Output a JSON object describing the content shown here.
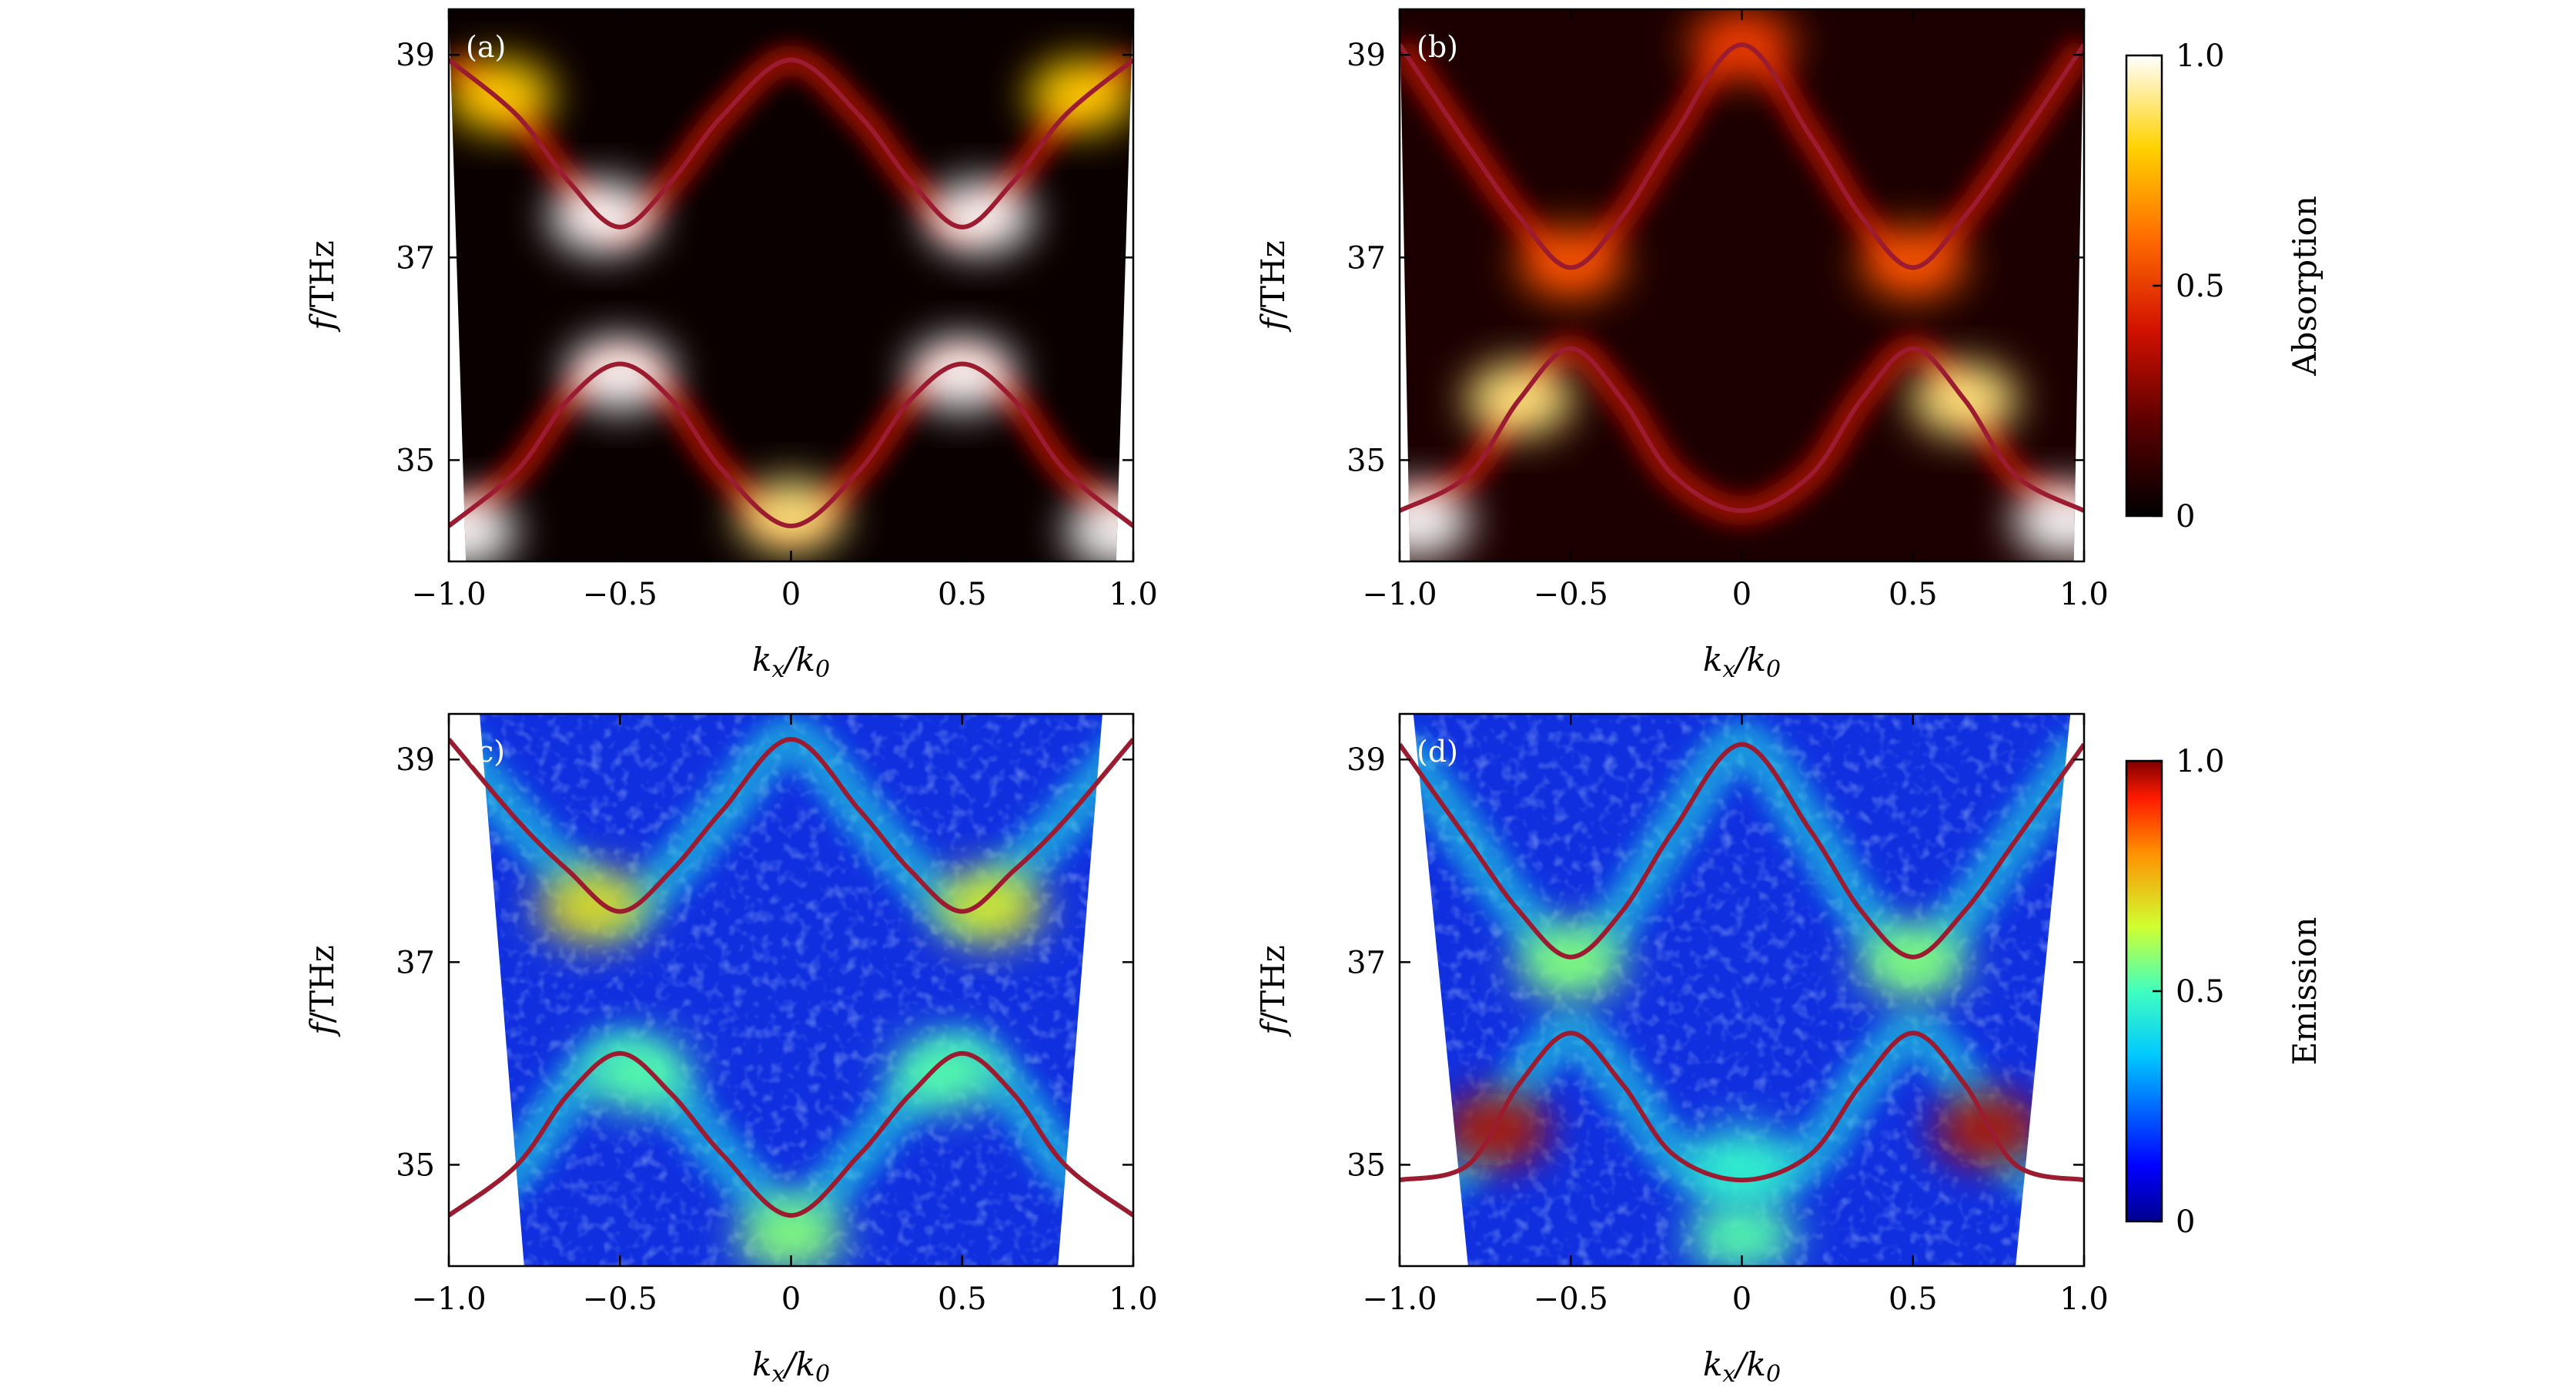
{
  "colors": {
    "band_line": "#9b1b30",
    "absorption_colormap": "hot",
    "emission_colormap": "jet"
  },
  "chart_data": [
    {
      "panel_label": "(a)",
      "type": "heatmap",
      "colormap": "hot",
      "colorbar_ref": "absorption",
      "xlabel": "kx/k0",
      "ylabel": "f/THz",
      "xlim": [
        -1.0,
        1.0
      ],
      "ylim": [
        34.0,
        39.45
      ],
      "xticks": [
        "−1.0",
        "−0.5",
        "0",
        "0.5",
        "1.0"
      ],
      "xtick_values": [
        -1.0,
        -0.5,
        0,
        0.5,
        1.0
      ],
      "yticks": [
        "35",
        "37",
        "39"
      ],
      "ytick_values": [
        35,
        37,
        39
      ],
      "valid_region": {
        "x_at_bottom": [
          -0.95,
          0.95
        ],
        "x_at_top": [
          -1.0,
          1.0
        ]
      },
      "series": [
        {
          "x": [
            -1.0,
            -0.8,
            -0.65,
            -0.5,
            -0.35,
            -0.2,
            0.0,
            0.2,
            0.35,
            0.5,
            0.65,
            0.8,
            1.0
          ],
          "y": [
            38.95,
            38.4,
            37.75,
            37.3,
            37.75,
            38.4,
            38.95,
            38.4,
            37.75,
            37.3,
            37.75,
            38.4,
            38.95
          ]
        },
        {
          "x": [
            -1.0,
            -0.8,
            -0.65,
            -0.5,
            -0.35,
            -0.2,
            0.0,
            0.2,
            0.35,
            0.5,
            0.65,
            0.8,
            1.0
          ],
          "y": [
            34.35,
            34.9,
            35.6,
            35.95,
            35.6,
            34.9,
            34.35,
            34.9,
            35.6,
            35.95,
            35.6,
            34.9,
            34.35
          ]
        }
      ],
      "intensity_features": [
        {
          "x": -0.55,
          "y": 37.4,
          "value": 1.0
        },
        {
          "x": 0.55,
          "y": 37.4,
          "value": 1.0
        },
        {
          "x": -0.85,
          "y": 38.6,
          "value": 0.8
        },
        {
          "x": 0.85,
          "y": 38.6,
          "value": 0.8
        },
        {
          "x": -0.5,
          "y": 35.85,
          "value": 1.0
        },
        {
          "x": 0.5,
          "y": 35.85,
          "value": 1.0
        },
        {
          "x": 0.0,
          "y": 34.45,
          "value": 0.9
        },
        {
          "x": -0.96,
          "y": 34.3,
          "value": 1.0
        },
        {
          "x": 0.96,
          "y": 34.3,
          "value": 1.0
        }
      ]
    },
    {
      "panel_label": "(b)",
      "type": "heatmap",
      "colormap": "hot",
      "colorbar_ref": "absorption",
      "xlabel": "kx/k0",
      "ylabel": "f/THz",
      "xlim": [
        -1.0,
        1.0
      ],
      "ylim": [
        34.0,
        39.45
      ],
      "xticks": [
        "−1.0",
        "−0.5",
        "0",
        "0.5",
        "1.0"
      ],
      "xtick_values": [
        -1.0,
        -0.5,
        0,
        0.5,
        1.0
      ],
      "yticks": [
        "35",
        "37",
        "39"
      ],
      "ytick_values": [
        35,
        37,
        39
      ],
      "valid_region": {
        "x_at_bottom": [
          -0.97,
          0.97
        ],
        "x_at_top": [
          -1.0,
          1.0
        ]
      },
      "series": [
        {
          "x": [
            -1.0,
            -0.8,
            -0.65,
            -0.5,
            -0.35,
            -0.2,
            0.0,
            0.2,
            0.35,
            0.5,
            0.65,
            0.8,
            1.0
          ],
          "y": [
            39.1,
            38.1,
            37.4,
            36.9,
            37.4,
            38.2,
            39.1,
            38.2,
            37.4,
            36.9,
            37.4,
            38.1,
            39.1
          ]
        },
        {
          "x": [
            -1.0,
            -0.8,
            -0.65,
            -0.5,
            -0.35,
            -0.2,
            0.0,
            0.2,
            0.35,
            0.5,
            0.65,
            0.8,
            1.0
          ],
          "y": [
            34.5,
            34.85,
            35.6,
            36.1,
            35.6,
            34.85,
            34.5,
            34.85,
            35.6,
            36.1,
            35.6,
            34.85,
            34.5
          ]
        }
      ],
      "intensity_features": [
        {
          "x": -0.5,
          "y": 36.95,
          "value": 0.55
        },
        {
          "x": 0.5,
          "y": 36.95,
          "value": 0.55
        },
        {
          "x": -0.65,
          "y": 35.6,
          "value": 0.9
        },
        {
          "x": 0.65,
          "y": 35.6,
          "value": 0.9
        },
        {
          "x": -0.95,
          "y": 34.4,
          "value": 1.0
        },
        {
          "x": 0.95,
          "y": 34.4,
          "value": 1.0
        },
        {
          "x": 0.0,
          "y": 39.1,
          "value": 0.5
        }
      ]
    },
    {
      "panel_label": "(c)",
      "type": "heatmap",
      "colormap": "jet",
      "colorbar_ref": "emission",
      "xlabel": "kx/k0",
      "ylabel": "f/THz",
      "xlim": [
        -1.0,
        1.0
      ],
      "ylim": [
        34.0,
        39.45
      ],
      "xticks": [
        "−1.0",
        "−0.5",
        "0",
        "0.5",
        "1.0"
      ],
      "xtick_values": [
        -1.0,
        -0.5,
        0,
        0.5,
        1.0
      ],
      "yticks": [
        "35",
        "37",
        "39"
      ],
      "ytick_values": [
        35,
        37,
        39
      ],
      "valid_region": {
        "x_at_bottom": [
          -0.78,
          0.78
        ],
        "x_at_top": [
          -0.91,
          0.91
        ]
      },
      "series": [
        {
          "x": [
            -1.0,
            -0.8,
            -0.65,
            -0.5,
            -0.35,
            -0.2,
            0.0,
            0.2,
            0.35,
            0.5,
            0.65,
            0.8,
            1.0
          ],
          "y": [
            39.2,
            38.4,
            37.9,
            37.5,
            37.9,
            38.5,
            39.2,
            38.5,
            37.9,
            37.5,
            37.9,
            38.4,
            39.2
          ]
        },
        {
          "x": [
            -1.0,
            -0.8,
            -0.65,
            -0.5,
            -0.35,
            -0.2,
            0.0,
            0.2,
            0.35,
            0.5,
            0.65,
            0.8,
            1.0
          ],
          "y": [
            34.5,
            35.0,
            35.7,
            36.1,
            35.7,
            35.1,
            34.5,
            35.1,
            35.7,
            36.1,
            35.7,
            35.0,
            34.5
          ]
        }
      ],
      "intensity_features": [
        {
          "x": -0.58,
          "y": 37.55,
          "value": 0.62
        },
        {
          "x": 0.58,
          "y": 37.55,
          "value": 0.6
        },
        {
          "x": -0.45,
          "y": 35.9,
          "value": 0.45
        },
        {
          "x": 0.45,
          "y": 35.9,
          "value": 0.45
        },
        {
          "x": 0.0,
          "y": 34.3,
          "value": 0.5
        }
      ]
    },
    {
      "panel_label": "(d)",
      "type": "heatmap",
      "colormap": "jet",
      "colorbar_ref": "emission",
      "xlabel": "kx/k0",
      "ylabel": "f/THz",
      "xlim": [
        -1.0,
        1.0
      ],
      "ylim": [
        34.0,
        39.45
      ],
      "xticks": [
        "−1.0",
        "−0.5",
        "0",
        "0.5",
        "1.0"
      ],
      "xtick_values": [
        -1.0,
        -0.5,
        0,
        0.5,
        1.0
      ],
      "yticks": [
        "35",
        "37",
        "39"
      ],
      "ytick_values": [
        35,
        37,
        39
      ],
      "valid_region": {
        "x_at_bottom": [
          -0.8,
          0.8
        ],
        "x_at_top": [
          -0.96,
          0.96
        ]
      },
      "series": [
        {
          "x": [
            -1.0,
            -0.8,
            -0.65,
            -0.5,
            -0.35,
            -0.2,
            0.0,
            0.2,
            0.35,
            0.5,
            0.65,
            0.8,
            1.0
          ],
          "y": [
            39.15,
            38.2,
            37.5,
            37.05,
            37.5,
            38.3,
            39.15,
            38.3,
            37.5,
            37.05,
            37.5,
            38.2,
            39.15
          ]
        },
        {
          "x": [
            -1.0,
            -0.8,
            -0.65,
            -0.5,
            -0.35,
            -0.2,
            0.0,
            0.2,
            0.35,
            0.5,
            0.65,
            0.8,
            1.0
          ],
          "y": [
            34.85,
            35.0,
            35.8,
            36.3,
            35.8,
            35.1,
            34.85,
            35.1,
            35.8,
            36.3,
            35.8,
            35.0,
            34.85
          ]
        }
      ],
      "intensity_features": [
        {
          "x": -0.72,
          "y": 35.35,
          "value": 0.95
        },
        {
          "x": 0.72,
          "y": 35.35,
          "value": 0.95
        },
        {
          "x": -0.5,
          "y": 37.0,
          "value": 0.5
        },
        {
          "x": 0.5,
          "y": 37.0,
          "value": 0.5
        },
        {
          "x": 0.0,
          "y": 34.3,
          "value": 0.45
        },
        {
          "x": 0.0,
          "y": 35.0,
          "value": 0.4
        }
      ]
    }
  ],
  "colorbars": {
    "absorption": {
      "label": "Absorption",
      "colormap": "hot",
      "range": [
        0,
        1.0
      ],
      "ticks": [
        "0",
        "0.5",
        "1.0"
      ],
      "tick_values": [
        0,
        0.5,
        1.0
      ]
    },
    "emission": {
      "label": "Emission",
      "colormap": "jet",
      "range": [
        0,
        1.0
      ],
      "ticks": [
        "0",
        "0.5",
        "1.0"
      ],
      "tick_values": [
        0,
        0.5,
        1.0
      ]
    }
  }
}
